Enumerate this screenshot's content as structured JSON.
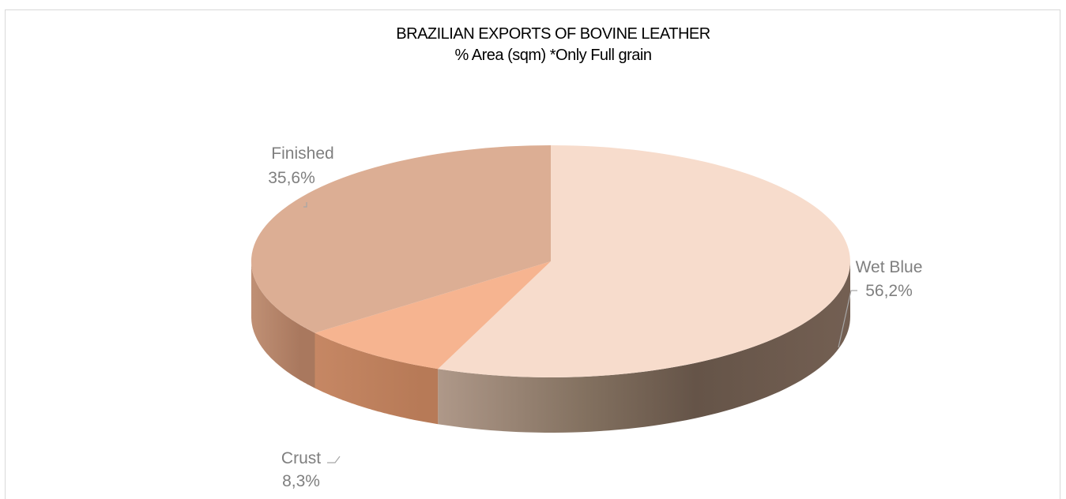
{
  "chart_data": {
    "type": "pie",
    "title": "BRAZILIAN EXPORTS OF BOVINE LEATHER",
    "subtitle": "% Area (sqm) *Only Full grain",
    "slices": [
      {
        "label": "Wet Blue",
        "value": 56.2,
        "value_text": "56,2%",
        "color": "#f7dccc"
      },
      {
        "label": "Crust",
        "value": 8.3,
        "value_text": "8,3%",
        "color": "#f6b490"
      },
      {
        "label": "Finished",
        "value": 35.6,
        "value_text": "35,6%",
        "color": "#dcae94"
      }
    ],
    "legend": "none",
    "style": "3d"
  }
}
